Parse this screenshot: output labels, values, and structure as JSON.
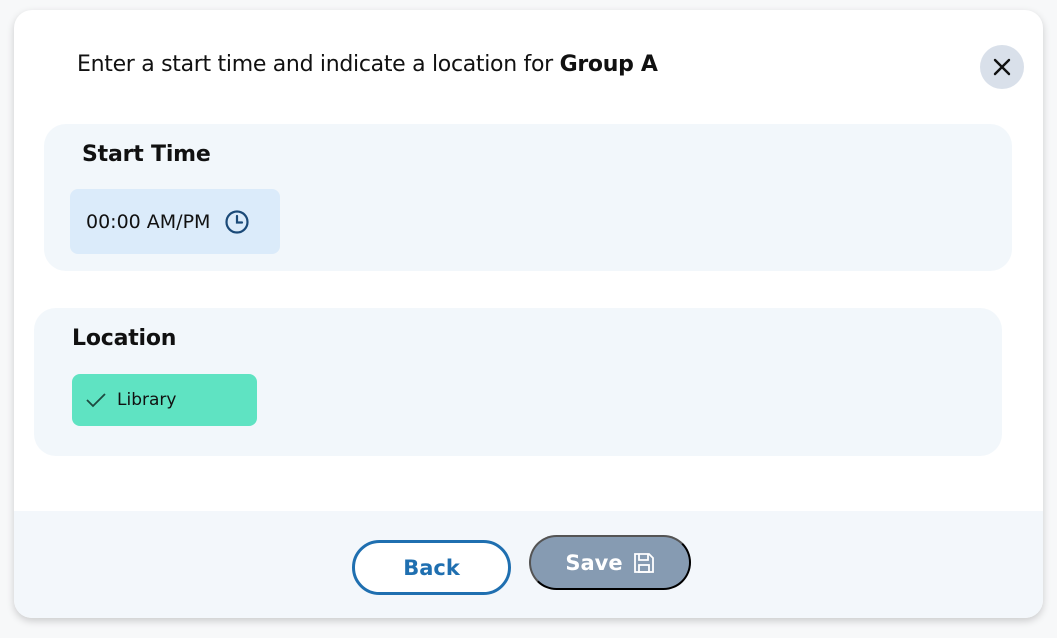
{
  "dialog": {
    "title_prefix": "Enter a start time and indicate a location for ",
    "title_group": "Group A",
    "close_icon": "close-icon"
  },
  "start_time": {
    "label": "Start Time",
    "value": "00:00 AM/PM",
    "icon": "clock-icon"
  },
  "location": {
    "label": "Location",
    "selected": "Library",
    "icon": "check-icon"
  },
  "footer": {
    "back_label": "Back",
    "save_label": "Save",
    "save_icon": "floppy-disk-icon"
  },
  "colors": {
    "accent": "#1f6fb0",
    "save_disabled": "#869bb2",
    "chip": "#5fe3c2",
    "time_field": "#dbebfa",
    "card": "#f2f7fb"
  }
}
